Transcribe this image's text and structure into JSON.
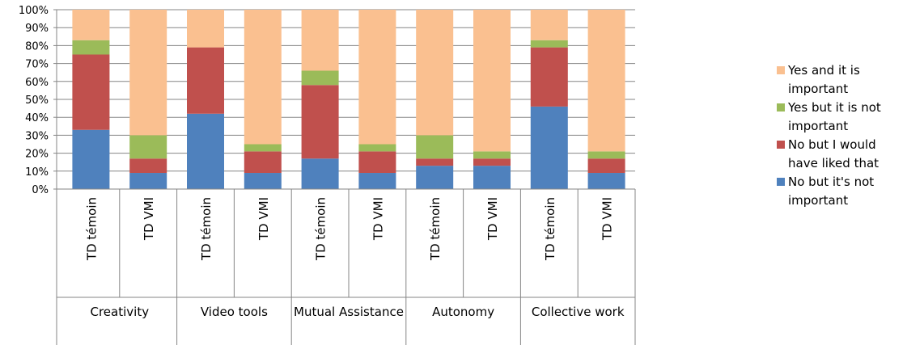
{
  "chart_data": {
    "type": "stacked_bar",
    "groups": [
      "Creativity",
      "Video tools",
      "Mutual Assistance",
      "Autonomy",
      "Collective work"
    ],
    "categories": [
      "TD témoin",
      "TD VMI",
      "TD témoin",
      "TD VMI",
      "TD témoin",
      "TD VMI",
      "TD témoin",
      "TD VMI",
      "TD témoin",
      "TD VMI"
    ],
    "series": [
      {
        "name": "No but it's not important",
        "color": "#4f81bd",
        "values": [
          33,
          9,
          42,
          9,
          17,
          9,
          13,
          13,
          46,
          9
        ]
      },
      {
        "name": "No but I would have liked that",
        "color": "#c0504d",
        "values": [
          42,
          8,
          37,
          12,
          41,
          12,
          4,
          4,
          33,
          8
        ]
      },
      {
        "name": "Yes but it is not important",
        "color": "#9bbb59",
        "values": [
          8,
          13,
          0,
          4,
          8,
          4,
          13,
          4,
          4,
          4
        ]
      },
      {
        "name": "Yes and it is important",
        "color": "#fac090",
        "values": [
          17,
          70,
          21,
          75,
          34,
          75,
          70,
          79,
          17,
          79
        ]
      }
    ],
    "ylim": [
      0,
      100
    ],
    "yticks": [
      {
        "value": 0,
        "label": "0%"
      },
      {
        "value": 10,
        "label": "10%"
      },
      {
        "value": 20,
        "label": "20%"
      },
      {
        "value": 30,
        "label": "30%"
      },
      {
        "value": 40,
        "label": "40%"
      },
      {
        "value": 50,
        "label": "50%"
      },
      {
        "value": 60,
        "label": "60%"
      },
      {
        "value": 70,
        "label": "70%"
      },
      {
        "value": 80,
        "label": "80%"
      },
      {
        "value": 90,
        "label": "90%"
      },
      {
        "value": 100,
        "label": "100%"
      }
    ],
    "grid": true,
    "legend": "right"
  }
}
